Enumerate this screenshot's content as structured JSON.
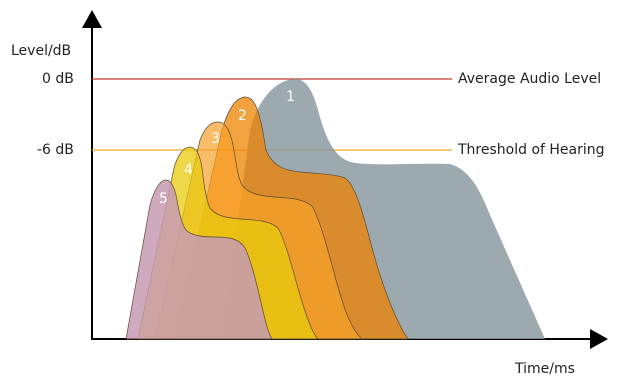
{
  "axes": {
    "y_label": "Level/dB",
    "x_label": "Time/ms",
    "y_tick_0": "0 dB",
    "y_tick_minus6": "-6 dB"
  },
  "reference_lines": {
    "average_audio_level": {
      "label": "Average Audio Level",
      "color": "#c0392b"
    },
    "threshold_of_hearing": {
      "label": "Threshold of Hearing",
      "color": "#f1a629"
    }
  },
  "curves": [
    {
      "label": "1",
      "color": "#8b9aa1"
    },
    {
      "label": "2",
      "color": "#ef8300"
    },
    {
      "label": "3",
      "color": "#f7a12a"
    },
    {
      "label": "4",
      "color": "#e8cb0c"
    },
    {
      "label": "5",
      "color": "#c79ab3"
    }
  ]
}
